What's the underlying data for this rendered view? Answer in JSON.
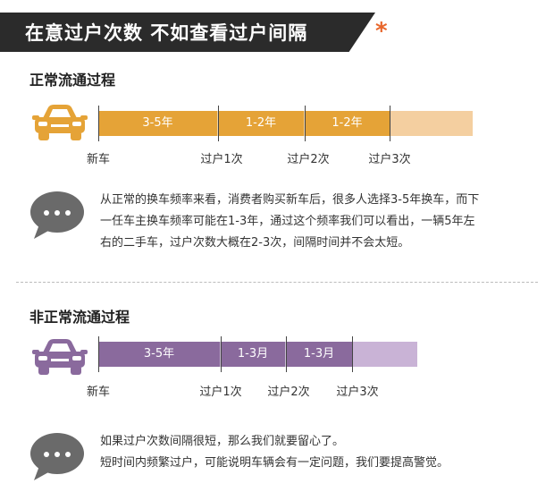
{
  "banner": {
    "title": "在意过户次数 不如查看过户间隔",
    "star": "*"
  },
  "colors": {
    "normal_bar": "#e5a337",
    "normal_bar_light": "#f4cfa0",
    "abnormal_bar": "#8a6a9d",
    "abnormal_bar_light": "#c9b3d6",
    "bubble": "#6a6a6a",
    "banner_bg": "#2b2b2b",
    "star": "#e8662b"
  },
  "normal": {
    "title": "正常流通过程",
    "segments": [
      "3-5年",
      "1-2年",
      "1-2年"
    ],
    "ticks": [
      "新车",
      "过户1次",
      "过户2次",
      "过户3次"
    ],
    "paragraph": [
      "从正常的换车频率来看，消费者购买新车后，很多人选择3-5年换车，而下",
      "一任车主换车频率可能在1-3年，通过这个频率我们可以看出，一辆5年左",
      "右的二手车，过户次数大概在2-3次，间隔时间并不会太短。"
    ]
  },
  "abnormal": {
    "title": "非正常流通过程",
    "segments": [
      "3-5年",
      "1-3月",
      "1-3月"
    ],
    "ticks": [
      "新车",
      "过户1次",
      "过户2次",
      "过户3次"
    ],
    "paragraph": [
      "如果过户次数间隔很短，那么我们就要留心了。",
      "短时间内频繁过户，可能说明车辆会有一定问题，我们要提高警觉。"
    ]
  }
}
